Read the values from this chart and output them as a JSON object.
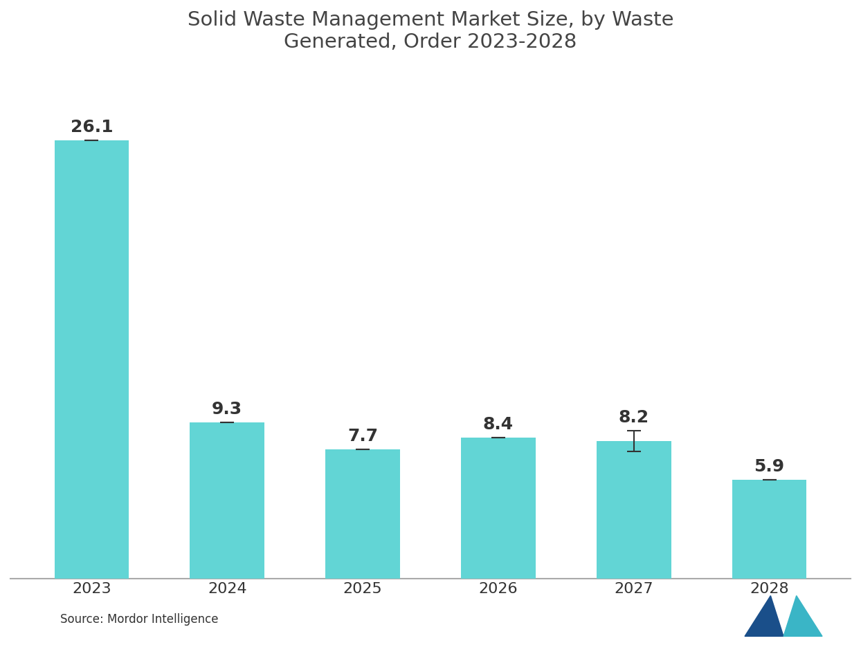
{
  "title_line1": "Solid Waste Management Market Size, by Waste",
  "title_line2": "Generated, Order 2023-2028",
  "categories": [
    "2023",
    "2024",
    "2025",
    "2026",
    "2027",
    "2028"
  ],
  "values": [
    26.1,
    9.3,
    7.7,
    8.4,
    8.2,
    5.9
  ],
  "bar_color": "#62D5D5",
  "background_color": "#ffffff",
  "plot_bg_color": "#ffffff",
  "text_color": "#333333",
  "title_color": "#444444",
  "axis_color": "#aaaaaa",
  "error_bar_index": 4,
  "error_bar_value": 0.6,
  "source_text": "Source: Mordor Intelligence",
  "ylim": [
    0,
    30
  ],
  "bar_width": 0.55,
  "title_fontsize": 21,
  "label_fontsize": 18,
  "tick_fontsize": 16
}
